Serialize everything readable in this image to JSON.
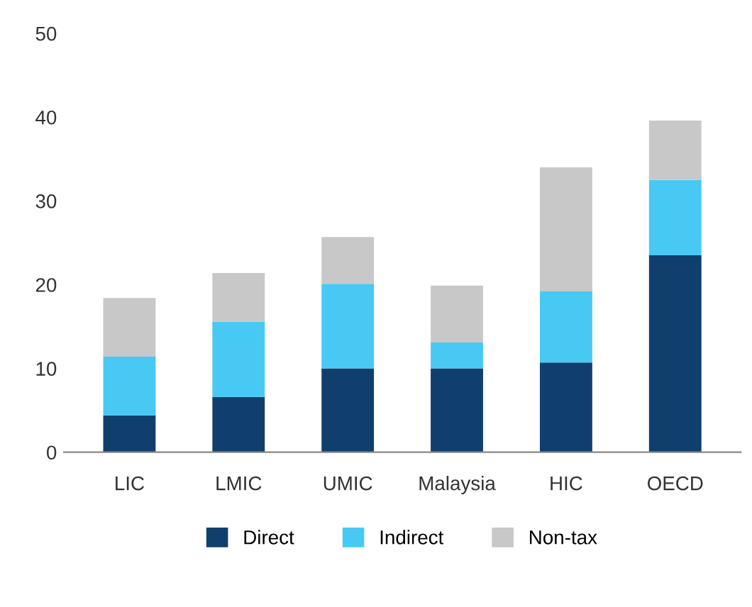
{
  "chart_data": {
    "type": "bar",
    "stacked": true,
    "categories": [
      "LIC",
      "LMIC",
      "UMIC",
      "Malaysia",
      "HIC",
      "OECD"
    ],
    "series": [
      {
        "name": "Direct",
        "color": "#103f6e",
        "values": [
          4.4,
          6.6,
          10.0,
          10.0,
          10.7,
          23.5
        ]
      },
      {
        "name": "Indirect",
        "color": "#47c9f3",
        "values": [
          7.0,
          9.0,
          10.1,
          3.1,
          8.5,
          9.0
        ]
      },
      {
        "name": "Non-tax",
        "color": "#c8c8c9",
        "values": [
          7.0,
          5.8,
          5.6,
          6.8,
          14.8,
          7.1
        ]
      }
    ],
    "ylim": [
      0,
      50
    ],
    "yticks": [
      0,
      10,
      20,
      30,
      40,
      50
    ],
    "grid": false,
    "legend": "bottom"
  }
}
